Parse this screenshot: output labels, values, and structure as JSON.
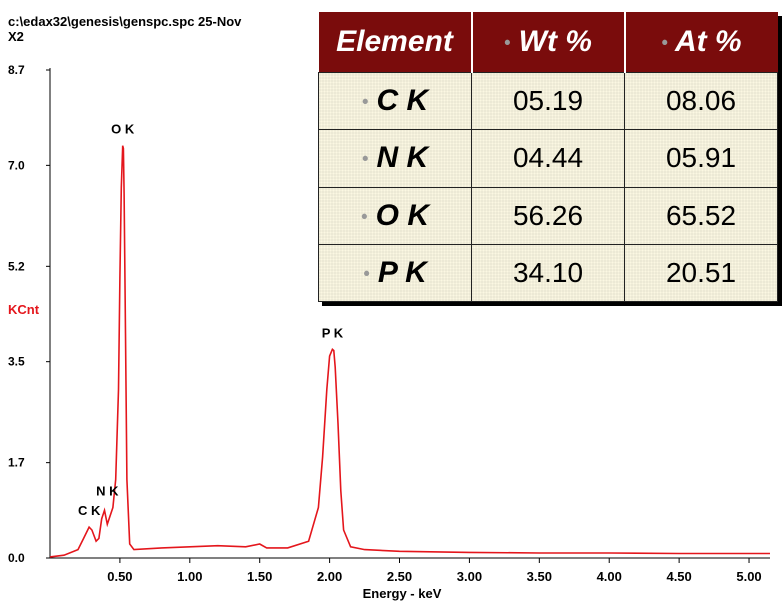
{
  "header": {
    "path": "c:\\edax32\\genesis\\genspc.spc  25-Nov",
    "scale": "X2"
  },
  "chart_data": {
    "type": "line",
    "title": "",
    "xlabel": "Energy - keV",
    "ylabel": "KCnt",
    "xlim": [
      0.0,
      5.15
    ],
    "ylim": [
      0.0,
      8.7
    ],
    "x_ticks": [
      "0.50",
      "1.00",
      "1.50",
      "2.00",
      "2.50",
      "3.00",
      "3.50",
      "4.00",
      "4.50",
      "5.00"
    ],
    "y_ticks": [
      "0.0",
      "1.7",
      "3.5",
      "5.2",
      "7.0",
      "8.7"
    ],
    "series": [
      {
        "color": "#e4161c",
        "x": [
          0.0,
          0.1,
          0.2,
          0.24,
          0.28,
          0.3,
          0.33,
          0.35,
          0.37,
          0.39,
          0.41,
          0.43,
          0.45,
          0.47,
          0.49,
          0.5,
          0.51,
          0.52,
          0.525,
          0.53,
          0.54,
          0.55,
          0.57,
          0.6,
          0.8,
          1.0,
          1.2,
          1.4,
          1.5,
          1.55,
          1.7,
          1.85,
          1.92,
          1.95,
          1.98,
          2.0,
          2.02,
          2.03,
          2.04,
          2.06,
          2.08,
          2.1,
          2.15,
          2.25,
          2.5,
          3.0,
          3.5,
          4.0,
          4.5,
          5.0,
          5.15
        ],
        "y": [
          0.02,
          0.05,
          0.15,
          0.35,
          0.55,
          0.5,
          0.3,
          0.35,
          0.7,
          0.85,
          0.6,
          0.75,
          0.9,
          1.4,
          3.0,
          5.0,
          6.6,
          7.35,
          7.3,
          6.5,
          4.0,
          1.4,
          0.25,
          0.15,
          0.18,
          0.2,
          0.22,
          0.2,
          0.25,
          0.18,
          0.18,
          0.3,
          0.9,
          1.8,
          3.0,
          3.6,
          3.72,
          3.7,
          3.4,
          2.4,
          1.2,
          0.5,
          0.2,
          0.15,
          0.12,
          0.1,
          0.09,
          0.09,
          0.08,
          0.08,
          0.08
        ]
      }
    ],
    "peak_labels": [
      {
        "text": "O K",
        "x": 0.52,
        "y": 7.35
      },
      {
        "text": "P K",
        "x": 2.02,
        "y": 3.72
      },
      {
        "text": "N K",
        "x": 0.41,
        "y": 0.9
      },
      {
        "text": "C K",
        "x": 0.28,
        "y": 0.55
      }
    ]
  },
  "table": {
    "headers": [
      "Element",
      "Wt %",
      "At %"
    ],
    "rows": [
      {
        "element": "C K",
        "wt": "05.19",
        "at": "08.06"
      },
      {
        "element": "N K",
        "wt": "04.44",
        "at": "05.91"
      },
      {
        "element": "O K",
        "wt": "56.26",
        "at": "65.52"
      },
      {
        "element": "P K",
        "wt": "34.10",
        "at": "20.51"
      }
    ]
  }
}
